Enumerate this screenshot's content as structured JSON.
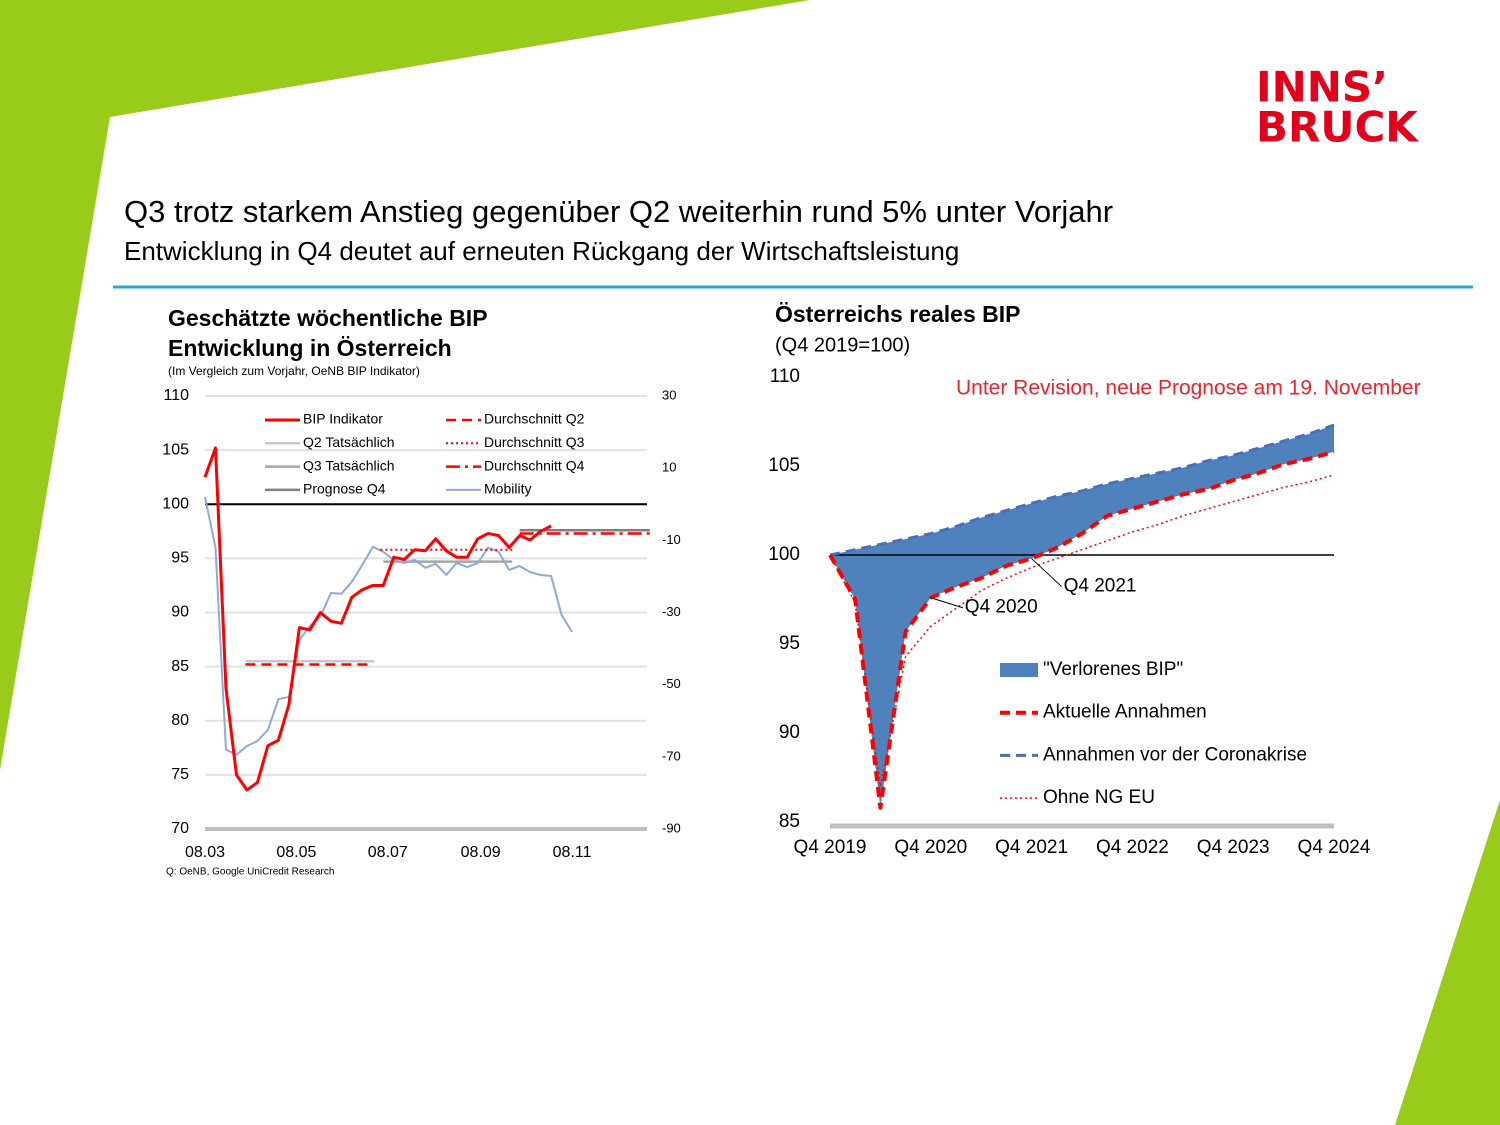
{
  "header": {
    "logo_line1": "INNS’",
    "logo_line2": "BRUCK",
    "title": "Q3 trotz starkem Anstieg gegenüber Q2 weiterhin rund 5% unter Vorjahr",
    "subtitle": "Entwicklung in Q4 deutet auf erneuten Rückgang der Wirtschaftsleistung"
  },
  "chart_data": [
    {
      "type": "line",
      "title_line1": "Geschätzte wöchentliche BIP",
      "title_line2": "Entwicklung in Österreich",
      "subtitle": "(Im Vergleich zum Vorjahr, OeNB BIP Indikator)",
      "source": "Q: OeNB, Google UniCredit Research",
      "xlim": [
        0,
        295
      ],
      "xticks": [
        {
          "value": 0,
          "label": "08.03"
        },
        {
          "value": 61,
          "label": "08.05"
        },
        {
          "value": 122,
          "label": "08.07"
        },
        {
          "value": 184,
          "label": "08.09"
        },
        {
          "value": 245,
          "label": "08.11"
        }
      ],
      "ylim": [
        70,
        110
      ],
      "yticks": [
        70,
        75,
        80,
        85,
        90,
        95,
        100,
        105,
        110
      ],
      "y2lim": [
        -90,
        30
      ],
      "y2ticks": [
        -90,
        -70,
        -50,
        -30,
        -10,
        10,
        30
      ],
      "grid": true,
      "reference_line": 100,
      "series": [
        {
          "name": "BIP Indikator",
          "color": "#ff0000",
          "dash": "solid",
          "width": 3,
          "x": [
            0,
            7,
            14,
            21,
            28,
            35,
            42,
            49,
            56,
            63,
            70,
            77,
            84,
            91,
            98,
            105,
            112,
            119,
            126,
            133,
            140,
            147,
            154,
            161,
            168,
            175,
            182,
            189,
            196,
            203,
            210,
            217,
            224,
            231
          ],
          "values": [
            102.5,
            105.2,
            83,
            75,
            73.6,
            74.3,
            77.7,
            78.2,
            81.5,
            88.6,
            88.4,
            90,
            89.2,
            89,
            91.4,
            92.1,
            92.5,
            92.5,
            95.1,
            94.9,
            95.8,
            95.7,
            96.8,
            95.7,
            95.1,
            95.1,
            96.8,
            97.3,
            97.1,
            96,
            97.1,
            96.7,
            97.5,
            98
          ]
        },
        {
          "name": "Durchschnitt Q2",
          "color": "#ff0000",
          "dash": "dashed",
          "width": 2.5,
          "x": [
            27,
            111
          ],
          "values": [
            85.2,
            85.2
          ]
        },
        {
          "name": "Q2 Tatsächlich",
          "color": "#c8c8c8",
          "dash": "solid",
          "width": 2.5,
          "x": [
            27,
            113
          ],
          "values": [
            85.5,
            85.5
          ]
        },
        {
          "name": "Durchschnitt Q3",
          "color": "#ff0000",
          "dash": "dotted",
          "width": 2,
          "x": [
            117,
            205
          ],
          "values": [
            95.8,
            95.8
          ]
        },
        {
          "name": "Q3 Tatsächlich",
          "color": "#a6a6a6",
          "dash": "solid",
          "width": 2.5,
          "x": [
            119,
            205
          ],
          "values": [
            94.7,
            94.7
          ]
        },
        {
          "name": "Durchschnitt Q4",
          "color": "#ff0000",
          "dash": "dashdot",
          "width": 2.5,
          "x": [
            210,
            297
          ],
          "values": [
            97.3,
            97.3
          ]
        },
        {
          "name": "Prognose Q4",
          "color": "#7f7f7f",
          "dash": "solid",
          "width": 2.5,
          "x": [
            210,
            297
          ],
          "values": [
            97.6,
            97.6
          ]
        },
        {
          "name": "Mobility",
          "color": "#8eaadb",
          "dash": "solid",
          "width": 2,
          "axis": "y2",
          "x": [
            0,
            7,
            14,
            21,
            28,
            35,
            42,
            49,
            56,
            63,
            70,
            77,
            84,
            91,
            98,
            105,
            112,
            119,
            126,
            133,
            140,
            147,
            154,
            161,
            168,
            175,
            182,
            189,
            196,
            203,
            210,
            217,
            224,
            231,
            238,
            245
          ],
          "values": [
            2,
            -12,
            -68,
            -69.4,
            -67,
            -65.6,
            -62.5,
            -54,
            -53.4,
            -37.6,
            -33.7,
            -31.2,
            -24.6,
            -24.8,
            -21.5,
            -16.8,
            -11.8,
            -13.2,
            -15.4,
            -16.3,
            -15.4,
            -17.6,
            -16.5,
            -19.6,
            -16.3,
            -17.4,
            -16.3,
            -12,
            -13.2,
            -18.2,
            -17.1,
            -18.8,
            -19.6,
            -19.9,
            -30.7,
            -35.4
          ]
        }
      ]
    },
    {
      "type": "line",
      "title": "Österreichs reales BIP",
      "subtitle": "(Q4 2019=100)",
      "note": "Unter Revision, neue Prognose am 19. November",
      "categories": [
        "Q4 2019",
        null,
        null,
        null,
        "Q4 2020",
        null,
        null,
        null,
        "Q4 2021",
        null,
        null,
        null,
        "Q4 2022",
        null,
        null,
        null,
        "Q4 2023",
        null,
        null,
        null,
        "Q4 2024"
      ],
      "ylim": [
        85,
        110
      ],
      "yticks": [
        85,
        90,
        95,
        100,
        105,
        110
      ],
      "reference_line": 100,
      "annotations": [
        {
          "text": "Q4 2021",
          "index": 8
        },
        {
          "text": "Q4 2020",
          "index": 4
        }
      ],
      "series": [
        {
          "name": "\"Verlorenes BIP\"",
          "color": "#4f81bd",
          "fill_between": [
            2,
            1
          ]
        },
        {
          "name": "Aktuelle Annahmen",
          "color": "#ff0000",
          "dash": "dashed",
          "width": 4,
          "values": [
            100,
            97.5,
            85.8,
            95.7,
            97.6,
            98.2,
            98.7,
            99.4,
            99.8,
            100.4,
            101.2,
            102.2,
            102.6,
            103,
            103.4,
            103.7,
            104.2,
            104.6,
            105.1,
            105.4,
            105.8
          ]
        },
        {
          "name": "Annahmen vor der Coronakrise",
          "color": "#4a6fb5",
          "dash": "dashed",
          "width": 3,
          "values": [
            100,
            100.3,
            100.6,
            100.9,
            101.2,
            101.6,
            102.1,
            102.5,
            102.9,
            103.3,
            103.6,
            104,
            104.3,
            104.6,
            104.9,
            105.3,
            105.6,
            106,
            106.4,
            106.8,
            107.3
          ]
        },
        {
          "name": "Ohne NG EU",
          "color": "#ff0000",
          "dash": "dotted",
          "width": 1.5,
          "values": [
            100,
            97.3,
            87,
            94.3,
            96,
            97,
            98,
            98.7,
            99.3,
            99.8,
            100.3,
            100.8,
            101.3,
            101.7,
            102.2,
            102.6,
            103,
            103.4,
            103.8,
            104.1,
            104.5
          ]
        }
      ]
    }
  ]
}
